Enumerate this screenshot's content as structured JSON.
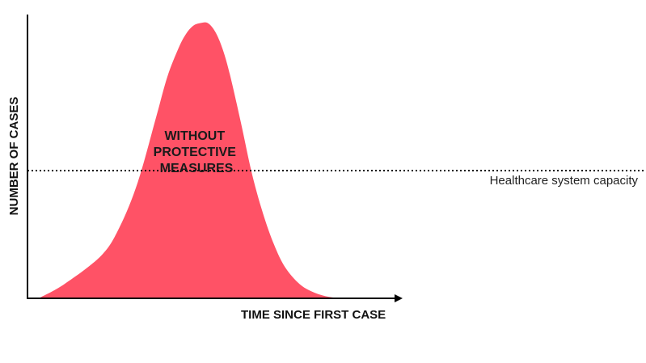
{
  "chart_data": {
    "type": "area",
    "xlabel": "TIME SINCE FIRST CASE",
    "ylabel": "NUMBER OF CASES",
    "xlim": [
      0,
      100
    ],
    "ylim": [
      0,
      100
    ],
    "grid": false,
    "series": [
      {
        "name": "WITHOUT PROTECTIVE MEASURES",
        "label_lines": [
          "WITHOUT",
          "PROTECTIVE",
          "MEASURES"
        ],
        "color": "#ff5266",
        "x": [
          3,
          10,
          20,
          25,
          30,
          35,
          38,
          41,
          43,
          45,
          47,
          49,
          51,
          53,
          55,
          58,
          61,
          64,
          67,
          70,
          74,
          78,
          82,
          86
        ],
        "y": [
          0,
          5,
          15,
          25,
          41,
          64,
          78,
          88,
          93,
          96,
          97,
          97,
          94,
          88,
          79,
          62,
          44,
          30,
          19,
          11,
          5,
          2,
          0.5,
          0
        ]
      }
    ],
    "reference_lines": [
      {
        "label": "Healthcare system capacity",
        "y": 45,
        "style": "dotted"
      }
    ]
  }
}
